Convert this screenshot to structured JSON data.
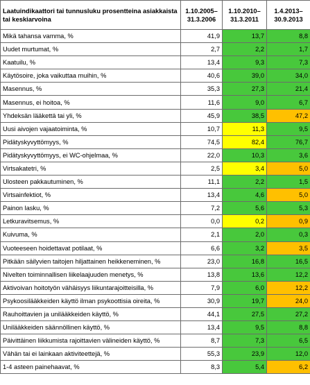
{
  "colors": {
    "green": "#48c83c",
    "yellow": "#ffff00",
    "orange": "#ffc000",
    "white": "#ffffff"
  },
  "header": {
    "col0": "Laatuindikaattori tai tunnusluku prosentteina asiakkaista tai keskiarvoina",
    "col1": "1.10.2005–31.3.2006",
    "col2": "1.10.2010–31.3.2011",
    "col3": "1.4.2013–30.9.2013"
  },
  "rows": [
    {
      "label": "Mikä tahansa vamma, %",
      "v1": "41,9",
      "v2": "13,7",
      "v3": "8,8",
      "c2": "green",
      "c3": "green"
    },
    {
      "label": "Uudet murtumat, %",
      "v1": "2,7",
      "v2": "2,2",
      "v3": "1,7",
      "c2": "green",
      "c3": "green"
    },
    {
      "label": "Kaatuilu, %",
      "v1": "13,4",
      "v2": "9,3",
      "v3": "7,3",
      "c2": "green",
      "c3": "green"
    },
    {
      "label": "Käytösoire, joka vaikuttaa muihin, %",
      "v1": "40,6",
      "v2": "39,0",
      "v3": "34,0",
      "c2": "green",
      "c3": "green"
    },
    {
      "label": "Masennus, %",
      "v1": "35,3",
      "v2": "27,3",
      "v3": "21,4",
      "c2": "green",
      "c3": "green"
    },
    {
      "label": "Masennus, ei hoitoa, %",
      "v1": "11,6",
      "v2": "9,0",
      "v3": "6,7",
      "c2": "green",
      "c3": "green"
    },
    {
      "label": "Yhdeksän lääkettä tai yli, %",
      "v1": "45,9",
      "v2": "38,5",
      "v3": "47,2",
      "c2": "green",
      "c3": "orange"
    },
    {
      "label": "Uusi aivojen vajaatoiminta, %",
      "v1": "10,7",
      "v2": "11,3",
      "v3": "9,5",
      "c2": "yellow",
      "c3": "green"
    },
    {
      "label": "Pidätyskyvyttömyys, %",
      "v1": "74,5",
      "v2": "82,4",
      "v3": "76,7",
      "c2": "yellow",
      "c3": "green"
    },
    {
      "label": "Pidätyskyvyttömyys, ei WC-ohjelmaa, %",
      "v1": "22,0",
      "v2": "10,3",
      "v3": "3,6",
      "c2": "green",
      "c3": "green"
    },
    {
      "label": "Virtsakatetri, %",
      "v1": "2,5",
      "v2": "3,4",
      "v3": "5,0",
      "c2": "yellow",
      "c3": "orange"
    },
    {
      "label": "Ulosteen pakkautuminen, %",
      "v1": "11,1",
      "v2": "2,2",
      "v3": "1,5",
      "c2": "green",
      "c3": "green"
    },
    {
      "label": "Virtsainfektiot, %",
      "v1": "13,4",
      "v2": "4,6",
      "v3": "5,0",
      "c2": "green",
      "c3": "orange"
    },
    {
      "label": "Painon lasku, %",
      "v1": "7,2",
      "v2": "5,6",
      "v3": "5,3",
      "c2": "green",
      "c3": "green"
    },
    {
      "label": "Letkuravitsemus, %",
      "v1": "0,0",
      "v2": "0,2",
      "v3": "0,9",
      "c2": "yellow",
      "c3": "orange"
    },
    {
      "label": "Kuivuma, %",
      "v1": "2,1",
      "v2": "2,0",
      "v3": "0,3",
      "c2": "green",
      "c3": "green"
    },
    {
      "label": "Vuoteeseen hoidettavat potilaat, %",
      "v1": "6,6",
      "v2": "3,2",
      "v3": "3,5",
      "c2": "green",
      "c3": "orange"
    },
    {
      "label": "Pitkään säilyvien taitojen hiljattainen heikkeneminen, %",
      "v1": "23,0",
      "v2": "16,8",
      "v3": "16,5",
      "c2": "green",
      "c3": "green"
    },
    {
      "label": "Nivelten toiminnallisen liikelaajuuden menetys, %",
      "v1": "13,8",
      "v2": "13,6",
      "v3": "12,2",
      "c2": "green",
      "c3": "green"
    },
    {
      "label": "Aktivoivan hoitotyön vähäisyys liikuntarajoitteisilla, %",
      "v1": "7,9",
      "v2": "6,0",
      "v3": "12,2",
      "c2": "green",
      "c3": "orange"
    },
    {
      "label": "Psykoosilääkkeiden käyttö ilman psykoottisia oireita, %",
      "v1": "30,9",
      "v2": "19,7",
      "v3": "24,0",
      "c2": "green",
      "c3": "orange"
    },
    {
      "label": "Rauhoittavien ja unilääkkeiden käyttö, %",
      "v1": "44,1",
      "v2": "27,5",
      "v3": "27,2",
      "c2": "green",
      "c3": "green"
    },
    {
      "label": "Unilääkkeiden säännöllinen käyttö, %",
      "v1": "13,4",
      "v2": "9,5",
      "v3": "8,8",
      "c2": "green",
      "c3": "green"
    },
    {
      "label": "Päivittäinen liikkumista rajoittavien välineiden käyttö, %",
      "v1": "8,7",
      "v2": "7,3",
      "v3": "6,5",
      "c2": "green",
      "c3": "green"
    },
    {
      "label": "Vähän tai ei lainkaan aktiviteettejä, %",
      "v1": "55,3",
      "v2": "23,9",
      "v3": "12,0",
      "c2": "green",
      "c3": "green"
    },
    {
      "label": "1-4 asteen painehaavat, %",
      "v1": "8,3",
      "v2": "5,4",
      "v3": "6,2",
      "c2": "green",
      "c3": "orange"
    }
  ]
}
